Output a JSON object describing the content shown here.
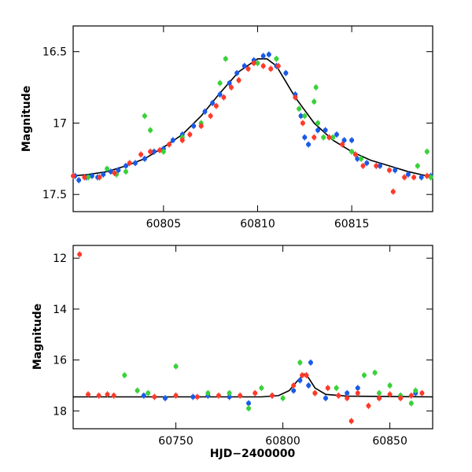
{
  "chart_data": [
    {
      "type": "scatter",
      "panel": "top",
      "xlim": [
        60800.2,
        60819.3
      ],
      "ylim": [
        17.62,
        16.32
      ],
      "ylabel": "Magnitude",
      "xlabel": "",
      "xticks": [
        60805,
        60810,
        60815
      ],
      "yticks": [
        16.5,
        17,
        17.5
      ],
      "ytick_labels": [
        "16.5",
        "17",
        "17.5"
      ],
      "grid": false,
      "series": [
        {
          "color": "#1a5ae6",
          "points": [
            [
              60800.3,
              17.37
            ],
            [
              60800.5,
              17.4
            ],
            [
              60800.9,
              17.38
            ],
            [
              60801.2,
              17.37
            ],
            [
              60801.5,
              17.38
            ],
            [
              60801.8,
              17.36
            ],
            [
              60802.2,
              17.34
            ],
            [
              60802.6,
              17.33
            ],
            [
              60803.0,
              17.3
            ],
            [
              60803.5,
              17.28
            ],
            [
              60804.0,
              17.25
            ],
            [
              60804.5,
              17.2
            ],
            [
              60805.0,
              17.18
            ],
            [
              60805.5,
              17.12
            ],
            [
              60806.0,
              17.08
            ],
            [
              60806.6,
              17.02
            ],
            [
              60807.2,
              16.92
            ],
            [
              60807.6,
              16.86
            ],
            [
              60808.0,
              16.8
            ],
            [
              60808.5,
              16.72
            ],
            [
              60808.9,
              16.65
            ],
            [
              60809.3,
              16.6
            ],
            [
              60809.8,
              16.56
            ],
            [
              60810.3,
              16.53
            ],
            [
              60810.6,
              16.52
            ],
            [
              60811.0,
              16.6
            ],
            [
              60811.5,
              16.65
            ],
            [
              60812.0,
              16.8
            ],
            [
              60812.3,
              16.95
            ],
            [
              60812.5,
              17.1
            ],
            [
              60812.7,
              17.15
            ],
            [
              60813.2,
              17.05
            ],
            [
              60813.6,
              17.05
            ],
            [
              60814.2,
              17.08
            ],
            [
              60814.6,
              17.12
            ],
            [
              60815.0,
              17.12
            ],
            [
              60815.3,
              17.25
            ],
            [
              60815.8,
              17.28
            ],
            [
              60816.5,
              17.3
            ],
            [
              60817.3,
              17.33
            ],
            [
              60818.0,
              17.36
            ],
            [
              60818.7,
              17.38
            ],
            [
              60819.2,
              17.37
            ]
          ]
        },
        {
          "color": "#3ad13a",
          "points": [
            [
              60801.0,
              17.38
            ],
            [
              60802.0,
              17.32
            ],
            [
              60802.5,
              17.36
            ],
            [
              60803.0,
              17.34
            ],
            [
              60804.0,
              16.95
            ],
            [
              60804.3,
              17.05
            ],
            [
              60805.0,
              17.2
            ],
            [
              60806.0,
              17.1
            ],
            [
              60807.0,
              17.0
            ],
            [
              60808.0,
              16.72
            ],
            [
              60808.3,
              16.55
            ],
            [
              60809.0,
              16.7
            ],
            [
              60810.0,
              16.58
            ],
            [
              60811.0,
              16.55
            ],
            [
              60812.2,
              16.9
            ],
            [
              60812.5,
              16.95
            ],
            [
              60813.0,
              16.85
            ],
            [
              60813.1,
              16.75
            ],
            [
              60813.2,
              17.0
            ],
            [
              60813.5,
              17.1
            ],
            [
              60814.0,
              17.1
            ],
            [
              60815.0,
              17.2
            ],
            [
              60815.5,
              17.25
            ],
            [
              60818.5,
              17.3
            ],
            [
              60819.0,
              17.2
            ],
            [
              60819.2,
              17.38
            ]
          ]
        },
        {
          "color": "#ff3a2a",
          "points": [
            [
              60800.2,
              17.37
            ],
            [
              60800.8,
              17.38
            ],
            [
              60801.6,
              17.38
            ],
            [
              60802.4,
              17.35
            ],
            [
              60803.2,
              17.28
            ],
            [
              60803.8,
              17.22
            ],
            [
              60804.3,
              17.2
            ],
            [
              60804.8,
              17.19
            ],
            [
              60805.3,
              17.15
            ],
            [
              60806.0,
              17.12
            ],
            [
              60806.4,
              17.08
            ],
            [
              60807.0,
              17.02
            ],
            [
              60807.5,
              16.95
            ],
            [
              60807.8,
              16.88
            ],
            [
              60808.2,
              16.82
            ],
            [
              60808.6,
              16.75
            ],
            [
              60809.0,
              16.7
            ],
            [
              60809.5,
              16.62
            ],
            [
              60809.8,
              16.58
            ],
            [
              60810.3,
              16.6
            ],
            [
              60810.7,
              16.62
            ],
            [
              60811.1,
              16.6
            ],
            [
              60812.0,
              16.82
            ],
            [
              60812.4,
              17.0
            ],
            [
              60813.0,
              17.1
            ],
            [
              60813.8,
              17.1
            ],
            [
              60814.5,
              17.15
            ],
            [
              60815.2,
              17.22
            ],
            [
              60815.6,
              17.3
            ],
            [
              60816.3,
              17.3
            ],
            [
              60817.0,
              17.33
            ],
            [
              60817.2,
              17.48
            ],
            [
              60817.8,
              17.38
            ],
            [
              60818.3,
              17.38
            ],
            [
              60819.0,
              17.37
            ]
          ]
        }
      ],
      "model": [
        [
          60800.2,
          17.37
        ],
        [
          60801,
          17.36
        ],
        [
          60802,
          17.34
        ],
        [
          60803,
          17.3
        ],
        [
          60804,
          17.25
        ],
        [
          60805,
          17.17
        ],
        [
          60806,
          17.08
        ],
        [
          60807,
          16.95
        ],
        [
          60808,
          16.79
        ],
        [
          60809,
          16.64
        ],
        [
          60810,
          16.55
        ],
        [
          60810.5,
          16.55
        ],
        [
          60811,
          16.6
        ],
        [
          60812,
          16.82
        ],
        [
          60813,
          17.0
        ],
        [
          60814,
          17.12
        ],
        [
          60815,
          17.2
        ],
        [
          60816,
          17.26
        ],
        [
          60817,
          17.3
        ],
        [
          60818,
          17.34
        ],
        [
          60819,
          17.37
        ]
      ]
    },
    {
      "type": "scatter",
      "panel": "bottom",
      "xlim": [
        60702,
        60870
      ],
      "ylim": [
        18.7,
        11.5
      ],
      "ylabel": "Magnitude",
      "xlabel": "HJD−2400000",
      "xticks": [
        60750,
        60800,
        60850
      ],
      "yticks": [
        12,
        14,
        16,
        18
      ],
      "ytick_labels": [
        "12",
        "14",
        "16",
        "18"
      ],
      "grid": false,
      "series": [
        {
          "color": "#1a5ae6",
          "points": [
            [
              60735,
              17.4
            ],
            [
              60745,
              17.5
            ],
            [
              60758,
              17.45
            ],
            [
              60765,
              17.4
            ],
            [
              60775,
              17.45
            ],
            [
              60784,
              17.7
            ],
            [
              60795,
              17.4
            ],
            [
              60805,
              17.2
            ],
            [
              60808,
              16.8
            ],
            [
              60812,
              17.0
            ],
            [
              60813,
              16.1
            ],
            [
              60820,
              17.5
            ],
            [
              60830,
              17.3
            ],
            [
              60835,
              17.1
            ],
            [
              60845,
              17.5
            ],
            [
              60855,
              17.4
            ],
            [
              60862,
              17.3
            ]
          ]
        },
        {
          "color": "#3ad13a",
          "points": [
            [
              60726,
              16.6
            ],
            [
              60732,
              17.2
            ],
            [
              60737,
              17.3
            ],
            [
              60750,
              16.25
            ],
            [
              60765,
              17.3
            ],
            [
              60775,
              17.3
            ],
            [
              60784,
              17.9
            ],
            [
              60790,
              17.1
            ],
            [
              60800,
              17.5
            ],
            [
              60808,
              16.1
            ],
            [
              60815,
              17.3
            ],
            [
              60825,
              17.1
            ],
            [
              60838,
              16.6
            ],
            [
              60843,
              16.5
            ],
            [
              60845,
              17.3
            ],
            [
              60850,
              17.0
            ],
            [
              60855,
              17.4
            ],
            [
              60860,
              17.7
            ],
            [
              60862,
              17.2
            ]
          ]
        },
        {
          "color": "#ff3a2a",
          "points": [
            [
              60705,
              11.85
            ],
            [
              60709,
              17.35
            ],
            [
              60714,
              17.4
            ],
            [
              60718,
              17.35
            ],
            [
              60721,
              17.4
            ],
            [
              60740,
              17.45
            ],
            [
              60750,
              17.4
            ],
            [
              60760,
              17.45
            ],
            [
              60770,
              17.4
            ],
            [
              60780,
              17.4
            ],
            [
              60787,
              17.3
            ],
            [
              60795,
              17.4
            ],
            [
              60805,
              17.0
            ],
            [
              60809,
              16.6
            ],
            [
              60811,
              16.6
            ],
            [
              60815,
              17.3
            ],
            [
              60821,
              17.1
            ],
            [
              60826,
              17.4
            ],
            [
              60830,
              17.5
            ],
            [
              60832,
              18.4
            ],
            [
              60835,
              17.3
            ],
            [
              60840,
              17.8
            ],
            [
              60845,
              17.5
            ],
            [
              60850,
              17.35
            ],
            [
              60855,
              17.5
            ],
            [
              60860,
              17.4
            ],
            [
              60865,
              17.3
            ]
          ]
        }
      ],
      "model": [
        [
          60702,
          17.45
        ],
        [
          60790,
          17.45
        ],
        [
          60798,
          17.4
        ],
        [
          60803,
          17.2
        ],
        [
          60807,
          16.8
        ],
        [
          60810,
          16.55
        ],
        [
          60812,
          16.7
        ],
        [
          60815,
          17.1
        ],
        [
          60820,
          17.35
        ],
        [
          60830,
          17.42
        ],
        [
          60870,
          17.45
        ]
      ]
    }
  ]
}
